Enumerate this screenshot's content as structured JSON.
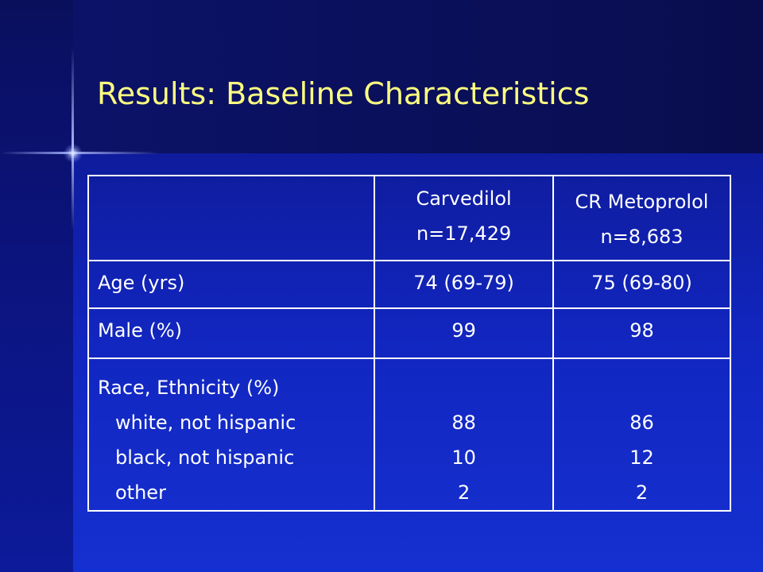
{
  "slide": {
    "title": "Results: Baseline Characteristics"
  },
  "table": {
    "headers": {
      "col1_line1": "Carvedilol",
      "col1_line2": "n=17,429",
      "col2_line1": "CR Metoprolol",
      "col2_line2": "n=8,683"
    },
    "rows": {
      "age": {
        "label": "Age (yrs)",
        "carvedilol": "74 (69-79)",
        "metoprolol": "75 (69-80)"
      },
      "male": {
        "label": "Male (%)",
        "carvedilol": "99",
        "metoprolol": "98"
      },
      "race": {
        "label": "Race, Ethnicity (%)",
        "sub_labels": [
          "white, not hispanic",
          "black, not hispanic",
          "other"
        ],
        "carvedilol": [
          "88",
          "10",
          "2"
        ],
        "metoprolol": [
          "86",
          "12",
          "2"
        ]
      }
    }
  },
  "colors": {
    "title": "#ffff80",
    "text": "#ffffff",
    "background": "#1226c0"
  }
}
